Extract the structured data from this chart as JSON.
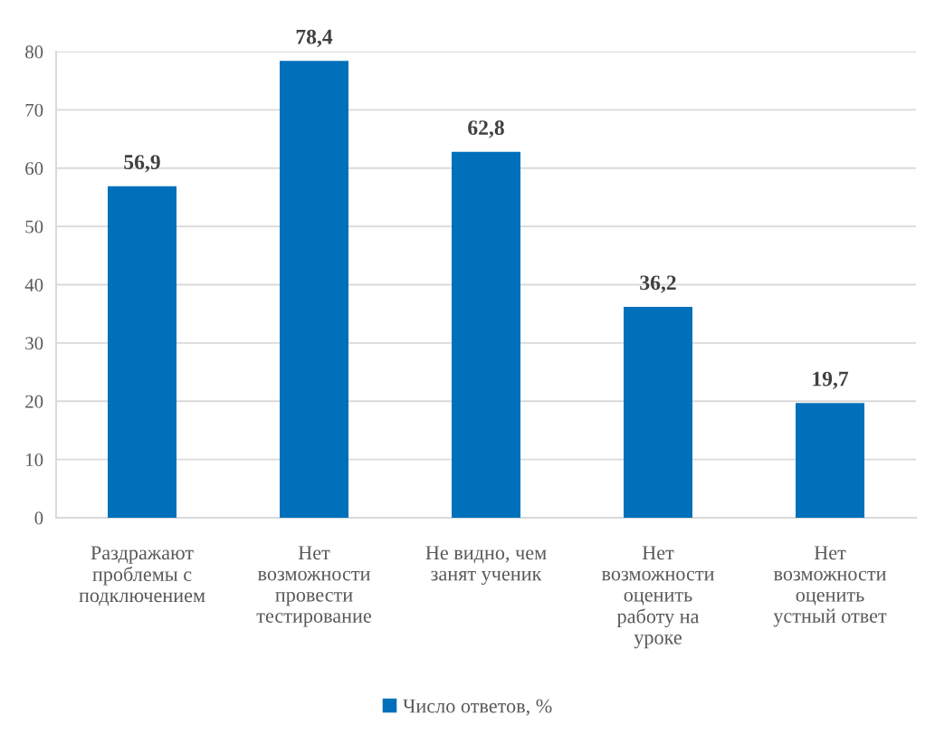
{
  "chart_data": {
    "type": "bar",
    "categories": [
      "Раздражают\nпроблемы с\nподключением",
      "Нет\nвозможности\nпровести\nтестирование",
      "Не видно, чем\nзанят ученик",
      "Нет\nвозможности\nоценить\nработу на\nуроке",
      "Нет\nвозможности\nоценить\nустный ответ"
    ],
    "series": [
      {
        "name": "Число ответов, %",
        "color": "#0070ba",
        "values": [
          56.9,
          78.4,
          62.8,
          36.2,
          19.7
        ],
        "value_labels": [
          "56,9",
          "78,4",
          "62,8",
          "36,2",
          "19,7"
        ]
      }
    ],
    "ylim": [
      0,
      80
    ],
    "yticks": [
      0,
      10,
      20,
      30,
      40,
      50,
      60,
      70,
      80
    ],
    "grid": "y",
    "legend": "bottom"
  }
}
